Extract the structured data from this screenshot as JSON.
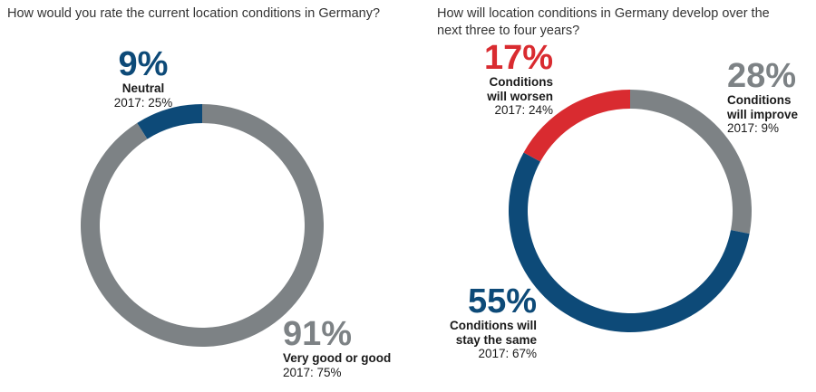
{
  "colors": {
    "gray": "#7d8285",
    "blue": "#0d4a78",
    "red": "#d92b30"
  },
  "chart_data": [
    {
      "type": "pie",
      "title": "How would you rate the current location conditions in Germany?",
      "segments": [
        {
          "label": "Neutral",
          "value": 9,
          "display": "9%",
          "previous": "2017: 25%",
          "color": "blue"
        },
        {
          "label": "Very good or good",
          "value": 91,
          "display": "91%",
          "previous": "2017: 75%",
          "color": "gray"
        }
      ]
    },
    {
      "type": "pie",
      "title": "How will location conditions in Germany develop over the next three to four years?",
      "segments": [
        {
          "label": "Conditions\nwill improve",
          "value": 28,
          "display": "28%",
          "previous": "2017: 9%",
          "color": "gray"
        },
        {
          "label": "Conditions will\nstay the same",
          "value": 55,
          "display": "55%",
          "previous": "2017: 67%",
          "color": "blue"
        },
        {
          "label": "Conditions\nwill worsen",
          "value": 17,
          "display": "17%",
          "previous": "2017: 24%",
          "color": "red"
        }
      ]
    }
  ]
}
